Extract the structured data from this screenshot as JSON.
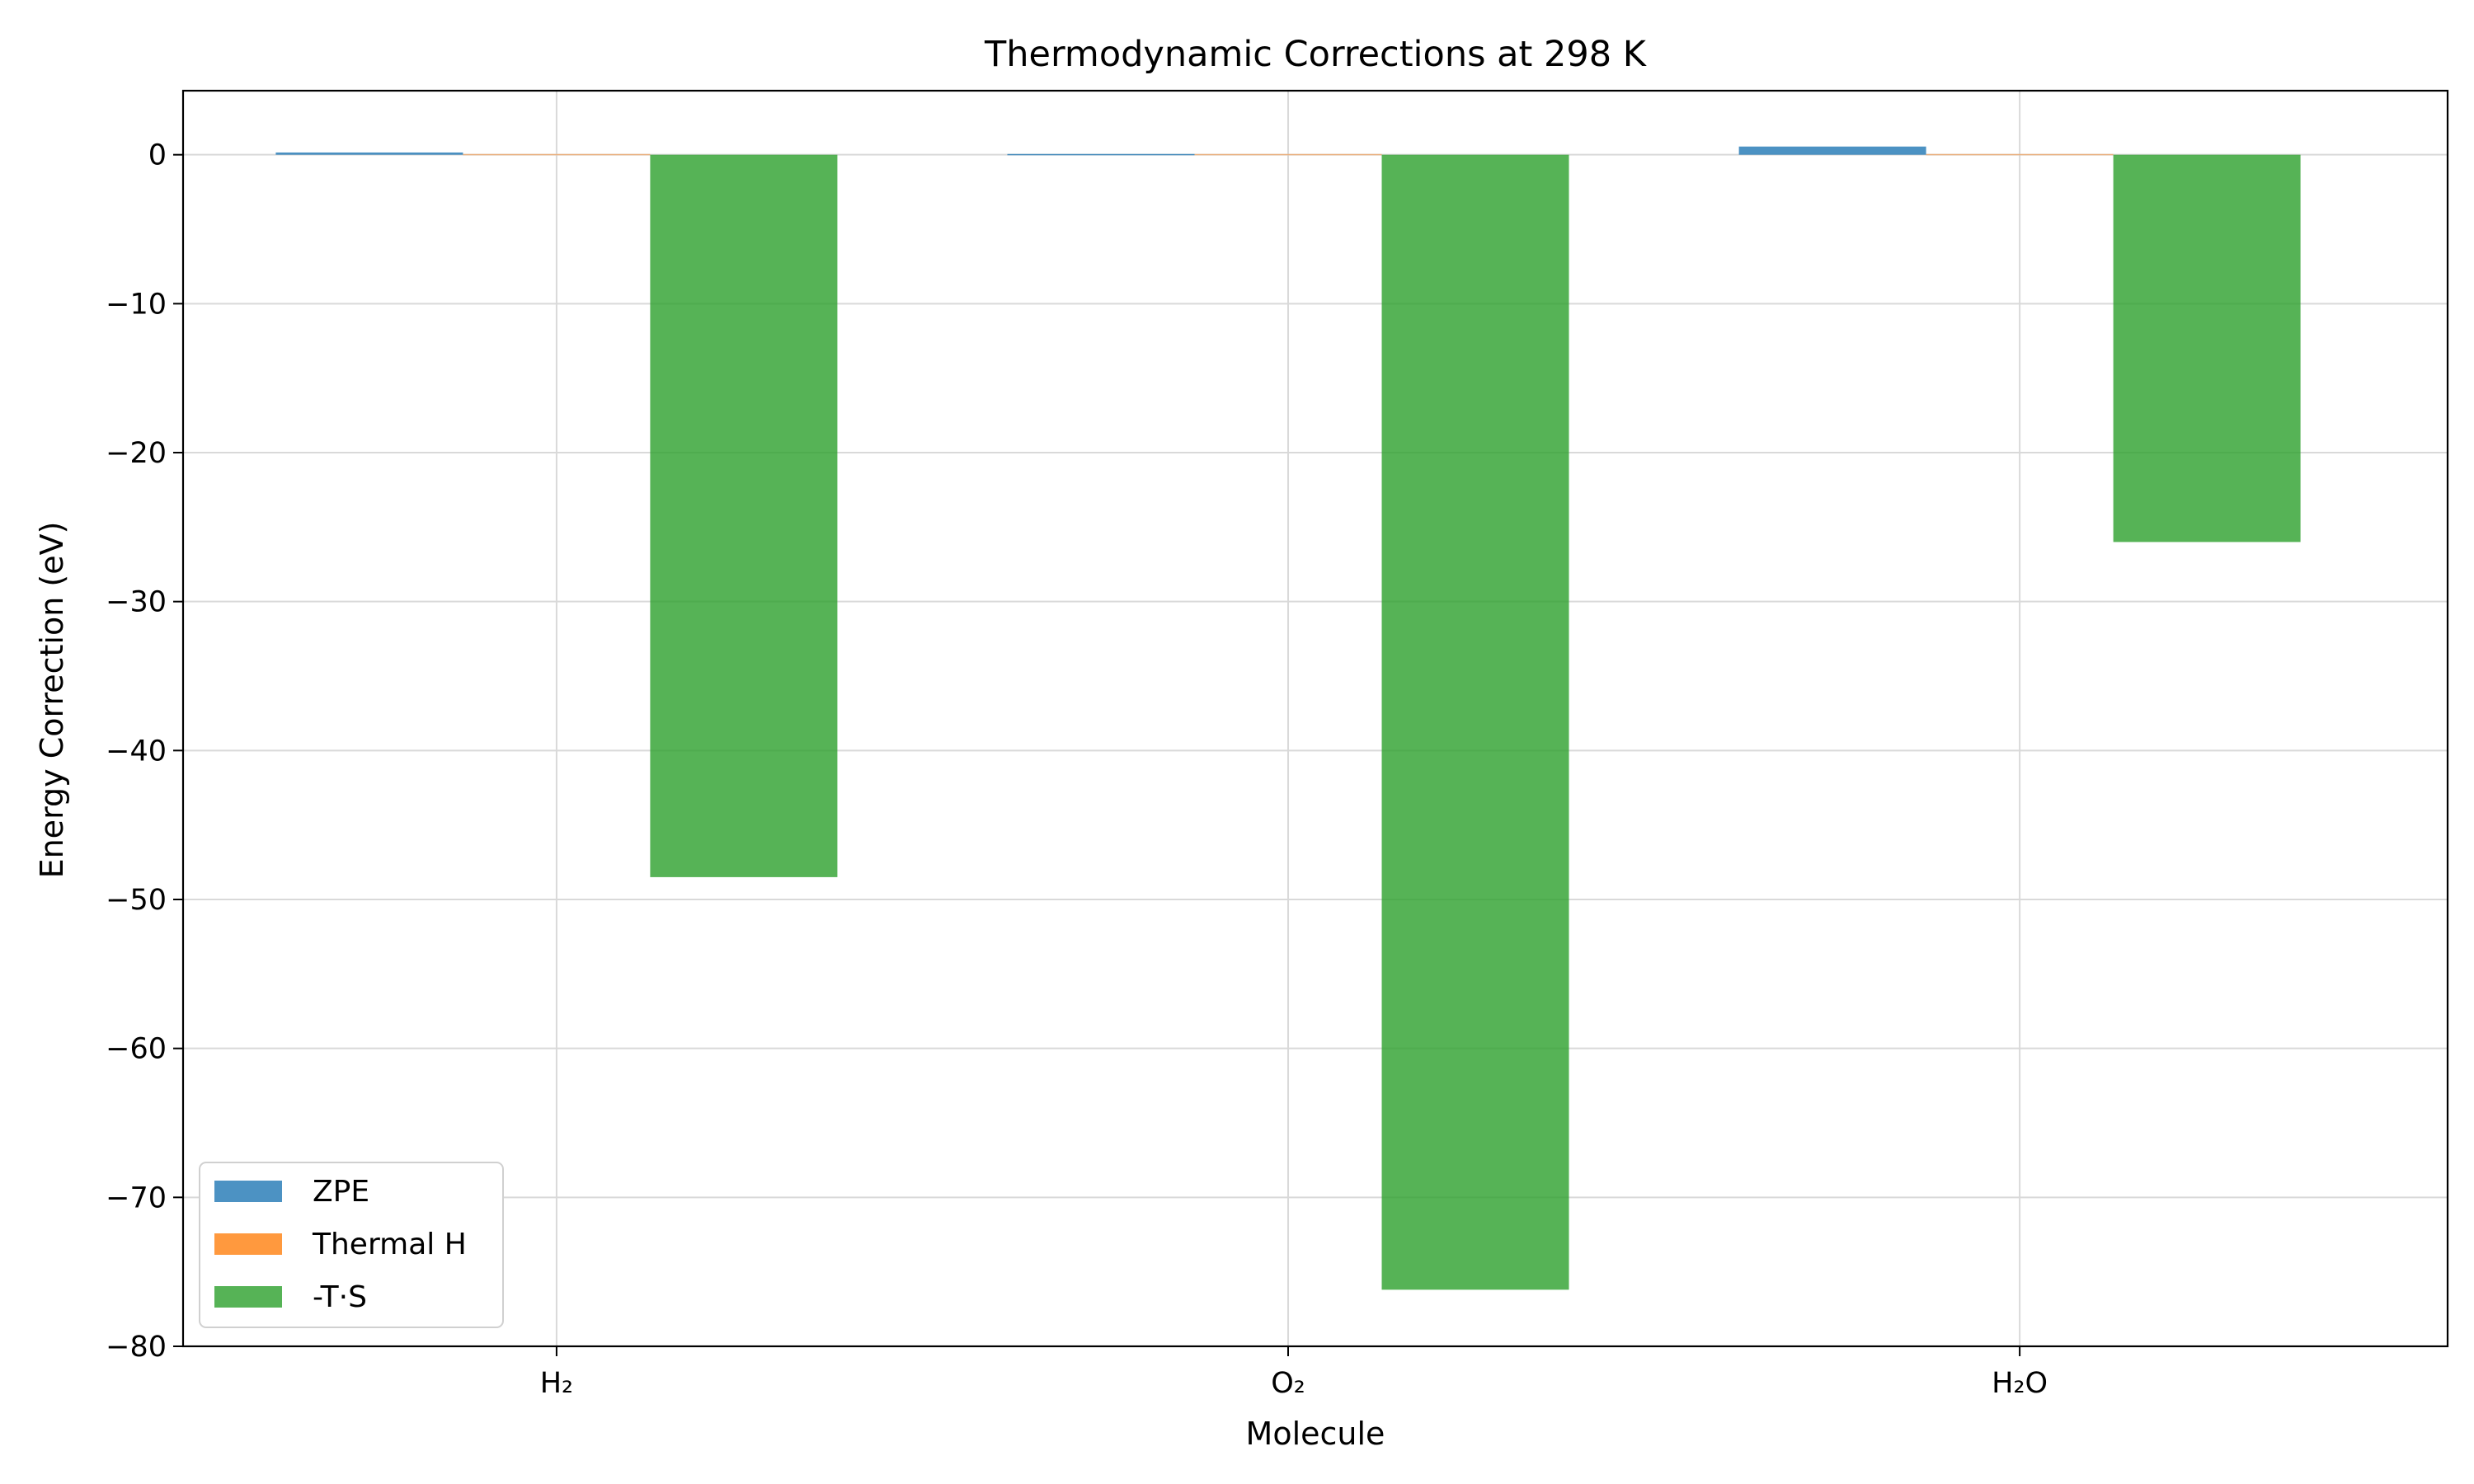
{
  "chart_data": {
    "type": "bar",
    "title": "Thermodynamic Corrections at 298 K",
    "xlabel": "Molecule",
    "ylabel": "Energy Correction (eV)",
    "categories": [
      "H₂",
      "O₂",
      "H₂O"
    ],
    "series": [
      {
        "name": "ZPE",
        "values": [
          0.15,
          0.05,
          0.55
        ],
        "color": "#1f77b4"
      },
      {
        "name": "Thermal H",
        "values": [
          0.05,
          0.05,
          0.05
        ],
        "color": "#ff7f0e"
      },
      {
        "name": "-T·S",
        "values": [
          -48.5,
          -76.2,
          -26.0
        ],
        "color": "#2ca02c"
      }
    ],
    "ylim": [
      -80,
      4.3
    ],
    "yticks": [
      0,
      -10,
      -20,
      -30,
      -40,
      -50,
      -60,
      -70,
      -80
    ],
    "grid": true,
    "legend": "bottom-left"
  }
}
